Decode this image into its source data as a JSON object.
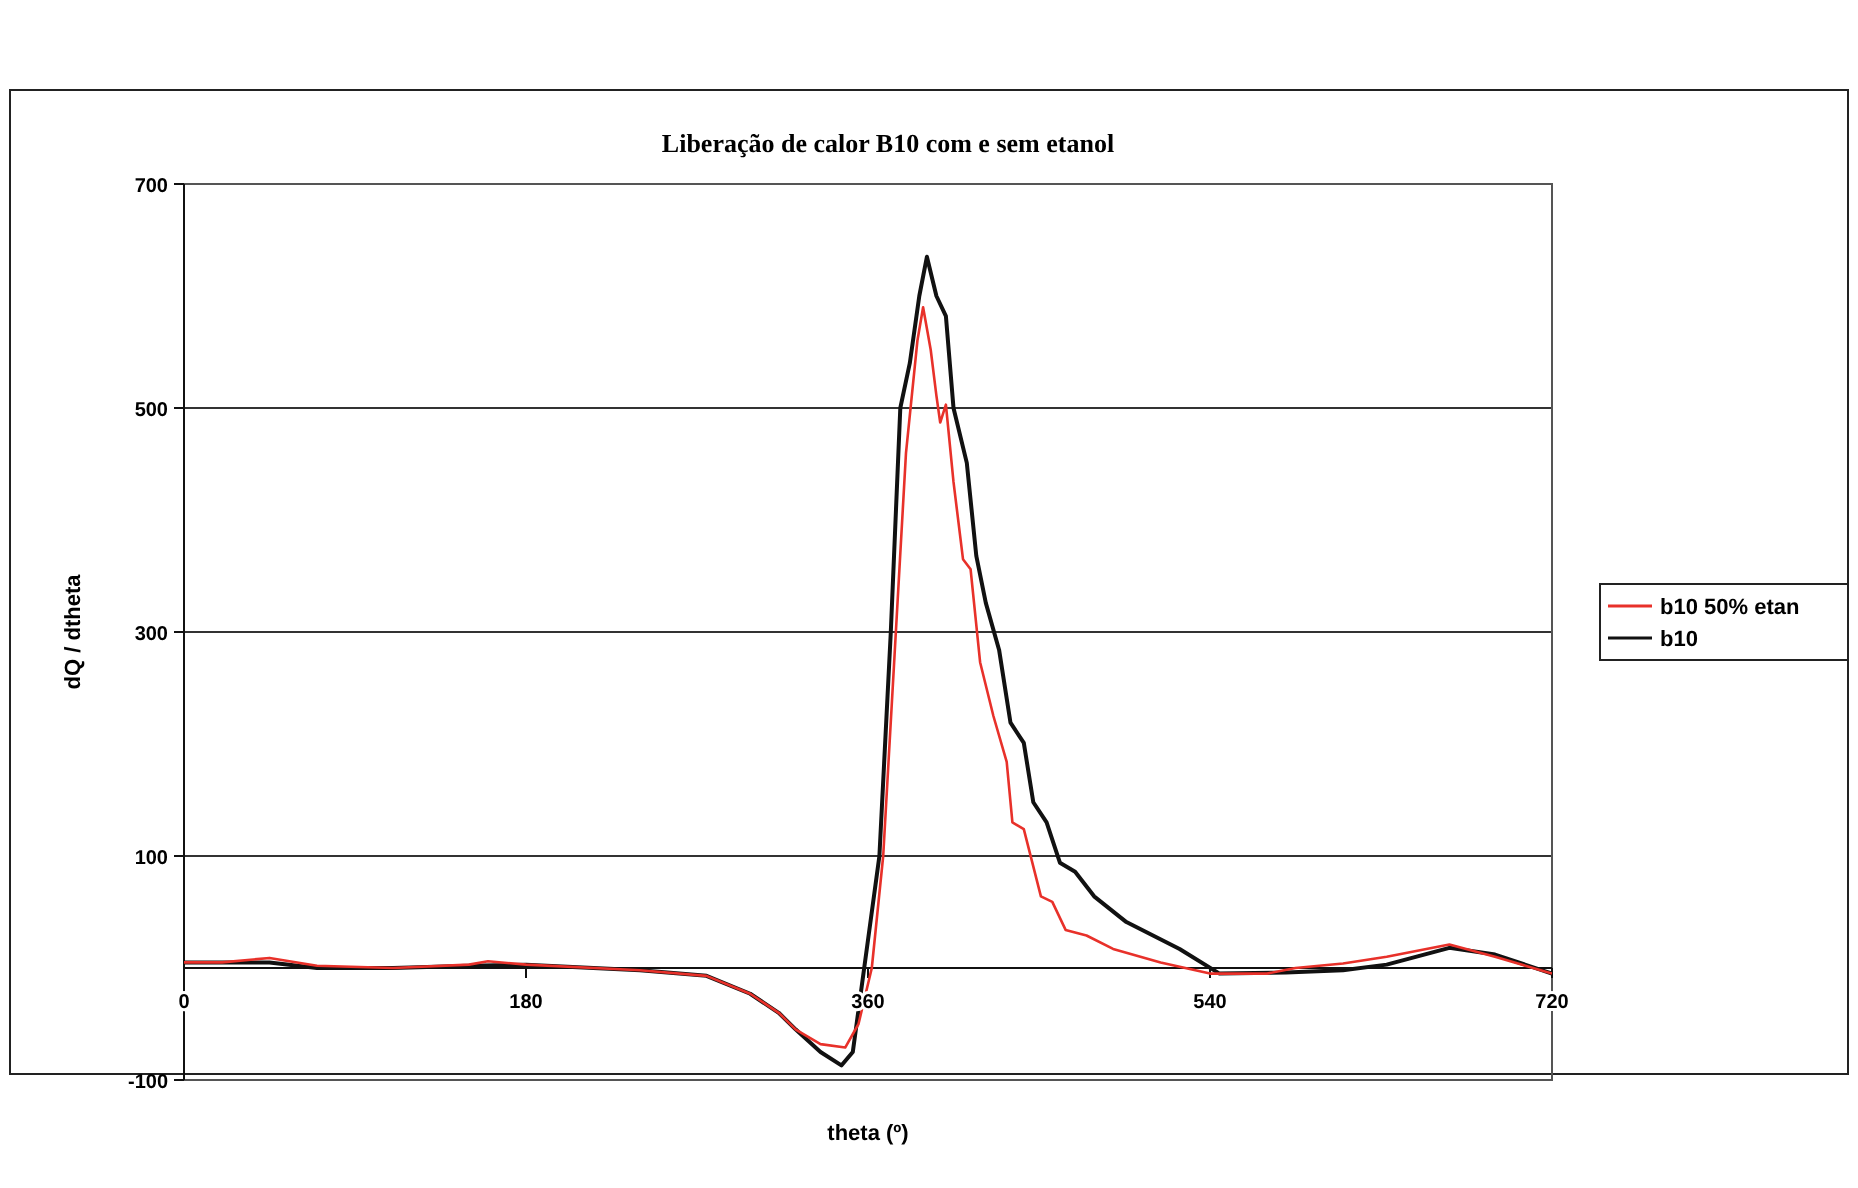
{
  "chart_data": {
    "type": "line",
    "title": "Liberação de calor B10 com e sem etanol",
    "xlabel": "theta (º)",
    "ylabel": "dQ / dtheta",
    "xlim": [
      0,
      720
    ],
    "xticks": [
      0,
      180,
      360,
      540,
      720
    ],
    "ylim": [
      -100,
      700
    ],
    "yticks": [
      -100,
      100,
      300,
      500,
      700
    ],
    "grid": "y",
    "legend": "right",
    "marker": "none",
    "line_style": "solid",
    "series": [
      {
        "name": "b10 50% etan",
        "color": "#e8312a",
        "x": [
          0,
          20,
          45,
          70,
          110,
          150,
          160,
          180,
          240,
          275,
          298,
          313,
          322,
          335,
          348,
          355,
          362,
          368,
          374,
          380,
          386,
          389,
          393,
          396,
          398,
          401,
          405,
          410,
          414,
          419,
          426,
          433,
          436,
          442,
          451,
          457,
          464,
          475,
          489,
          514,
          540,
          570,
          585,
          610,
          633,
          666,
          690,
          720
        ],
        "values": [
          5,
          5,
          9,
          2,
          0,
          3,
          6,
          3,
          -2,
          -7,
          -23,
          -40,
          -55,
          -68,
          -71,
          -50,
          0,
          100,
          280,
          460,
          560,
          590,
          552,
          511,
          487,
          503,
          434,
          365,
          356,
          273,
          225,
          184,
          130,
          124,
          64,
          59,
          34,
          29,
          17,
          5,
          -5,
          -5,
          0,
          4,
          10,
          21,
          10,
          -5
        ]
      },
      {
        "name": "b10",
        "color": "#111111",
        "x": [
          0,
          20,
          45,
          70,
          110,
          150,
          180,
          240,
          275,
          298,
          313,
          322,
          335,
          346,
          352,
          358,
          366,
          372,
          377,
          382,
          387,
          391,
          396,
          401,
          405,
          412,
          417,
          422,
          429,
          435,
          442,
          447,
          454,
          461,
          469,
          479,
          496,
          524,
          545,
          580,
          610,
          633,
          666,
          690,
          720
        ],
        "values": [
          5,
          5,
          5,
          0,
          0,
          2,
          3,
          -2,
          -7,
          -23,
          -40,
          -55,
          -75,
          -87,
          -75,
          0,
          100,
          300,
          500,
          540,
          600,
          635,
          600,
          582,
          500,
          451,
          368,
          326,
          284,
          219,
          201,
          148,
          130,
          94,
          86,
          64,
          41,
          17,
          -5,
          -4,
          -2,
          3,
          18,
          12,
          -5
        ]
      }
    ]
  }
}
